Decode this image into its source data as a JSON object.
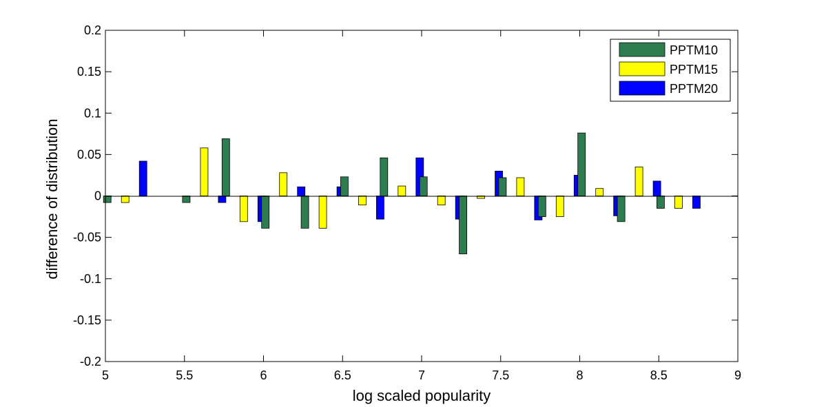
{
  "chart_data": {
    "type": "bar",
    "title": "",
    "xlabel": "log scaled popularity",
    "ylabel": "difference of distribution",
    "xlim": [
      5,
      9
    ],
    "ylim": [
      -0.2,
      0.2
    ],
    "xticks": [
      "5",
      "5.5",
      "6",
      "6.5",
      "7",
      "7.5",
      "8",
      "8.5",
      "9"
    ],
    "yticks": [
      "0.2",
      "0.15",
      "0.1",
      "0.05",
      "0",
      "-0.05",
      "-0.1",
      "-0.15",
      "-0.2"
    ],
    "grid": false,
    "legend_position": "top-right",
    "x": [
      5.125,
      5.625,
      5.875,
      6.125,
      6.375,
      6.625,
      6.875,
      7.125,
      7.375,
      7.625,
      7.875,
      8.125,
      8.375,
      8.625
    ],
    "series": [
      {
        "name": "PPTM10",
        "color": "#2e7d50",
        "values": [
          -0.008,
          -0.008,
          0.069,
          -0.039,
          -0.039,
          0.023,
          0.046,
          0.023,
          -0.07,
          0.022,
          -0.025,
          0.076,
          -0.031,
          -0.015
        ]
      },
      {
        "name": "PPTM15",
        "color": "#ffff00",
        "values": [
          -0.008,
          0.058,
          -0.031,
          0.028,
          -0.039,
          -0.011,
          0.012,
          -0.011,
          -0.003,
          0.022,
          -0.025,
          0.009,
          0.035,
          -0.015
        ]
      },
      {
        "name": "PPTM20",
        "color": "#0000ff",
        "values": [
          0.042,
          -0.008,
          -0.031,
          0.011,
          0.011,
          -0.028,
          0.046,
          -0.028,
          0.03,
          -0.029,
          0.025,
          -0.024,
          0.018,
          -0.015
        ]
      }
    ]
  }
}
